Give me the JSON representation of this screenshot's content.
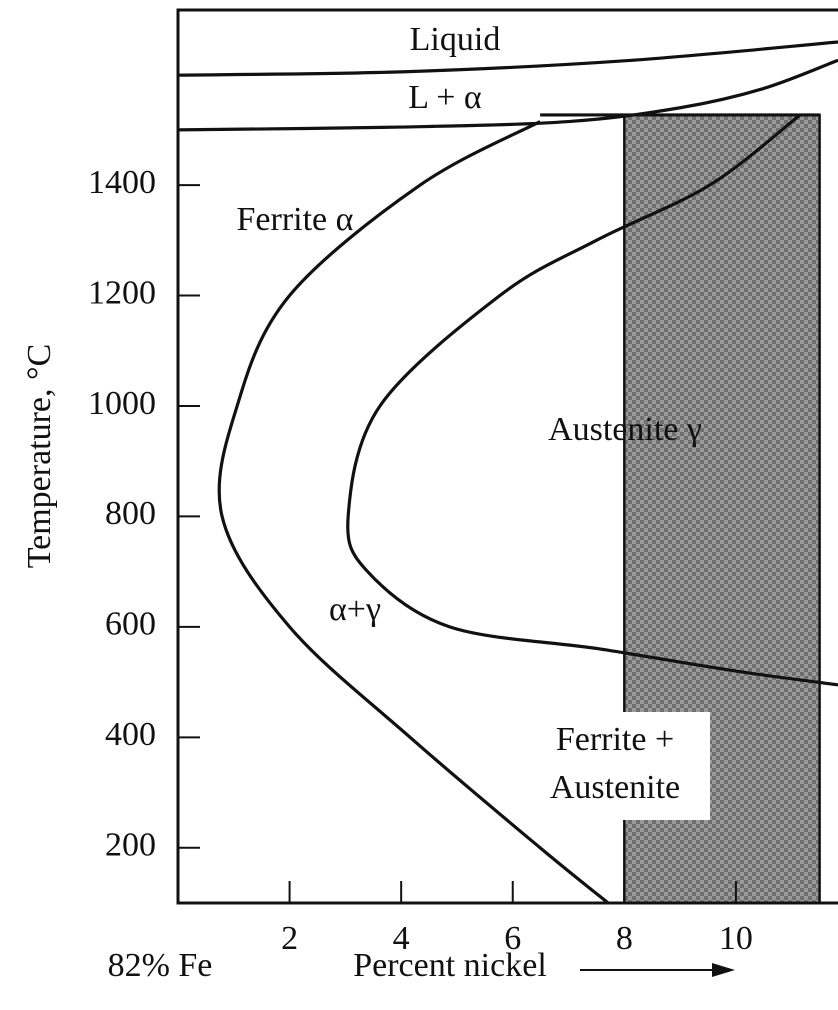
{
  "chart_data": {
    "type": "phase-diagram",
    "xlabel": "Percent nickel",
    "xlabel_left": "82% Fe",
    "ylabel": "Temperature, °C",
    "xlim": [
      0,
      11.83
    ],
    "ylim": [
      100,
      1717
    ],
    "xticks": [
      2,
      4,
      6,
      8,
      10
    ],
    "yticks": [
      200,
      400,
      600,
      800,
      1000,
      1200,
      1400
    ],
    "series": [
      {
        "color": "#111111",
        "x": [
          0,
          4,
          8,
          11.83
        ],
        "values": [
          1599,
          1605,
          1625,
          1659
        ]
      },
      {
        "color": "#111111",
        "x": [
          0,
          4,
          7,
          9,
          10.5,
          11.83
        ],
        "values": [
          1500,
          1505,
          1515,
          1540,
          1575,
          1626
        ]
      },
      {
        "color": "#111111",
        "x": [
          6.49,
          4.34,
          2.0,
          1.06,
          0.79,
          2.0,
          4.16,
          6.49,
          7.71
        ],
        "values": [
          1515,
          1400,
          1200,
          1000,
          800,
          600,
          400,
          200,
          100
        ]
      },
      {
        "color": "#111111",
        "x": [
          11.15,
          9.53,
          7.5,
          5.77,
          3.62,
          3.05,
          3.4,
          4.87,
          7.56,
          10,
          11.83
        ],
        "values": [
          1527,
          1400,
          1300,
          1200,
          1000,
          800,
          700,
          600,
          560,
          520,
          495
        ]
      }
    ],
    "shaded_region": {
      "color": "#8a8a8a",
      "xrange": [
        8,
        11.5
      ],
      "yrange": [
        100,
        1527
      ]
    },
    "annotations": [
      "Liquid",
      "L + α",
      "Ferrite α",
      "Austenite γ",
      "α+γ",
      "Ferrite +",
      "Austenite"
    ]
  }
}
